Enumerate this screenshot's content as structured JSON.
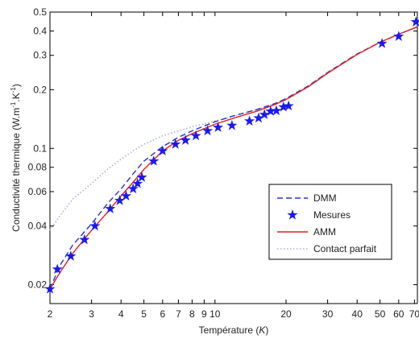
{
  "chart_data": {
    "type": "line",
    "xlabel": "Température (K)",
    "xlabel_parts": [
      "Température (",
      "K",
      ")"
    ],
    "ylabel": "Conductivité thermique (W.m-1.K-1)",
    "ylabel_parts": [
      "Conductivité thermique (W.m",
      "-1",
      ".K",
      "-1",
      ")"
    ],
    "xscale": "log",
    "yscale": "log",
    "xlim": [
      2,
      72
    ],
    "ylim": [
      0.016,
      0.5
    ],
    "grid": false,
    "legend_position": "lower-right",
    "x_ticks": [
      {
        "value": 2,
        "label": "2"
      },
      {
        "value": 3,
        "label": "3"
      },
      {
        "value": 4,
        "label": "4"
      },
      {
        "value": 5,
        "label": "5"
      },
      {
        "value": 6,
        "label": "6"
      },
      {
        "value": 7,
        "label": "7"
      },
      {
        "value": 8,
        "label": "8"
      },
      {
        "value": 9,
        "label": "9"
      },
      {
        "value": 10,
        "label": "10"
      },
      {
        "value": 20,
        "label": "20"
      },
      {
        "value": 30,
        "label": "30"
      },
      {
        "value": 40,
        "label": "40"
      },
      {
        "value": 50,
        "label": "50"
      },
      {
        "value": 60,
        "label": "60"
      },
      {
        "value": 70,
        "label": "70"
      }
    ],
    "y_ticks": [
      {
        "value": 0.02,
        "label": "0.02"
      },
      {
        "value": 0.04,
        "label": "0.04"
      },
      {
        "value": 0.06,
        "label": "0.06"
      },
      {
        "value": 0.08,
        "label": "0.08"
      },
      {
        "value": 0.1,
        "label": "0.1"
      },
      {
        "value": 0.2,
        "label": "0.2"
      },
      {
        "value": 0.3,
        "label": "0.3"
      },
      {
        "value": 0.4,
        "label": "0.4"
      },
      {
        "value": 0.5,
        "label": "0.5"
      }
    ],
    "series": [
      {
        "name": "DMM",
        "style": "dashed",
        "color": "#2233cc",
        "x": [
          2,
          2.2,
          2.5,
          3,
          3.5,
          4,
          4.5,
          5,
          6,
          7,
          8,
          10,
          12,
          15,
          18,
          20,
          25,
          30,
          40,
          50,
          60,
          72
        ],
        "y": [
          0.019,
          0.025,
          0.032,
          0.041,
          0.052,
          0.062,
          0.074,
          0.086,
          0.102,
          0.114,
          0.123,
          0.137,
          0.147,
          0.158,
          0.17,
          0.18,
          0.21,
          0.245,
          0.305,
          0.35,
          0.385,
          0.42
        ]
      },
      {
        "name": "Mesures",
        "style": "markers",
        "marker": "star",
        "color": "#1a1aee",
        "x": [
          2.0,
          2.15,
          2.45,
          2.8,
          3.1,
          3.6,
          3.95,
          4.2,
          4.5,
          4.7,
          4.9,
          5.5,
          6.0,
          6.8,
          7.5,
          8.3,
          9.3,
          10.3,
          11.8,
          14.0,
          15.3,
          16.2,
          17.2,
          18.2,
          19.5,
          20.5,
          51,
          60,
          71
        ],
        "y": [
          0.019,
          0.024,
          0.028,
          0.034,
          0.04,
          0.049,
          0.054,
          0.057,
          0.062,
          0.066,
          0.071,
          0.086,
          0.097,
          0.105,
          0.11,
          0.116,
          0.123,
          0.128,
          0.131,
          0.138,
          0.143,
          0.149,
          0.155,
          0.156,
          0.163,
          0.165,
          0.345,
          0.375,
          0.445
        ]
      },
      {
        "name": "AMM",
        "style": "solid",
        "color": "#e02020",
        "x": [
          2,
          2.2,
          2.5,
          3,
          3.5,
          4,
          4.5,
          5,
          6,
          7,
          8,
          10,
          12,
          15,
          18,
          20,
          25,
          30,
          40,
          50,
          60,
          72
        ],
        "y": [
          0.019,
          0.023,
          0.029,
          0.038,
          0.047,
          0.057,
          0.067,
          0.078,
          0.097,
          0.11,
          0.119,
          0.133,
          0.143,
          0.155,
          0.168,
          0.178,
          0.208,
          0.243,
          0.303,
          0.35,
          0.385,
          0.42
        ]
      },
      {
        "name": "Contact parfait",
        "style": "dotted",
        "color": "#aab0dd",
        "x": [
          2,
          2.2,
          2.5,
          3,
          3.5,
          4,
          4.5,
          5,
          6,
          7,
          8,
          10,
          12,
          15,
          18,
          20,
          25,
          30,
          40,
          50,
          60,
          72
        ],
        "y": [
          0.038,
          0.045,
          0.055,
          0.066,
          0.078,
          0.088,
          0.097,
          0.105,
          0.116,
          0.123,
          0.129,
          0.138,
          0.146,
          0.158,
          0.17,
          0.18,
          0.21,
          0.245,
          0.305,
          0.35,
          0.385,
          0.42
        ]
      }
    ]
  }
}
